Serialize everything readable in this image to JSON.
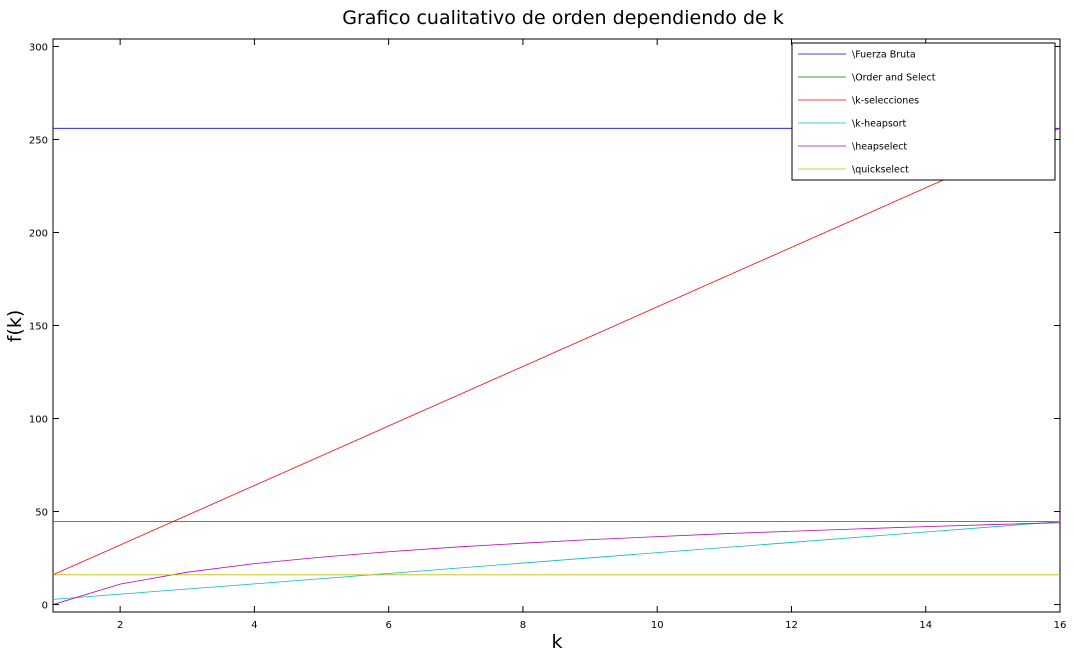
{
  "chart_data": {
    "type": "line",
    "title": "Grafico cualitativo de orden dependiendo de k",
    "xlabel": "k",
    "ylabel": "f(k)",
    "xlim": [
      1,
      16
    ],
    "ylim": [
      -4,
      304
    ],
    "x_ticks": [
      2,
      4,
      6,
      8,
      10,
      12,
      14,
      16
    ],
    "y_ticks": [
      0,
      50,
      100,
      150,
      200,
      250,
      300
    ],
    "grid": false,
    "legend_position": "top-right",
    "series": [
      {
        "name": "\\Fuerza Bruta",
        "color": "#0000ff",
        "x": [
          1,
          16
        ],
        "y": [
          256,
          256
        ]
      },
      {
        "name": "\\Order and Select",
        "color": "#008000",
        "x": [
          1,
          16
        ],
        "y": [
          44.6,
          44.6
        ]
      },
      {
        "name": "\\k-selecciones",
        "color": "#ff0000",
        "x": [
          1,
          16
        ],
        "y": [
          16,
          256
        ]
      },
      {
        "name": "\\k-heapsort",
        "color": "#00bfbf",
        "x": [
          1,
          2,
          4,
          6,
          8,
          10,
          12,
          14,
          16
        ],
        "y": [
          2.8,
          5.6,
          11.1,
          16.7,
          22.3,
          27.9,
          33.4,
          39.0,
          44.6
        ]
      },
      {
        "name": "\\heapselect",
        "color": "#bf00bf",
        "x": [
          1,
          2,
          3,
          4,
          5,
          6,
          7,
          8,
          9,
          10,
          11,
          12,
          13,
          14,
          15,
          16
        ],
        "y": [
          0,
          11.0,
          17.4,
          22.0,
          25.5,
          28.4,
          30.9,
          33.0,
          34.9,
          36.5,
          38.1,
          39.4,
          40.7,
          41.9,
          43.0,
          44.0
        ]
      },
      {
        "name": "\\quickselect",
        "color": "#bfbf00",
        "x": [
          1,
          16
        ],
        "y": [
          16,
          16
        ]
      }
    ]
  }
}
